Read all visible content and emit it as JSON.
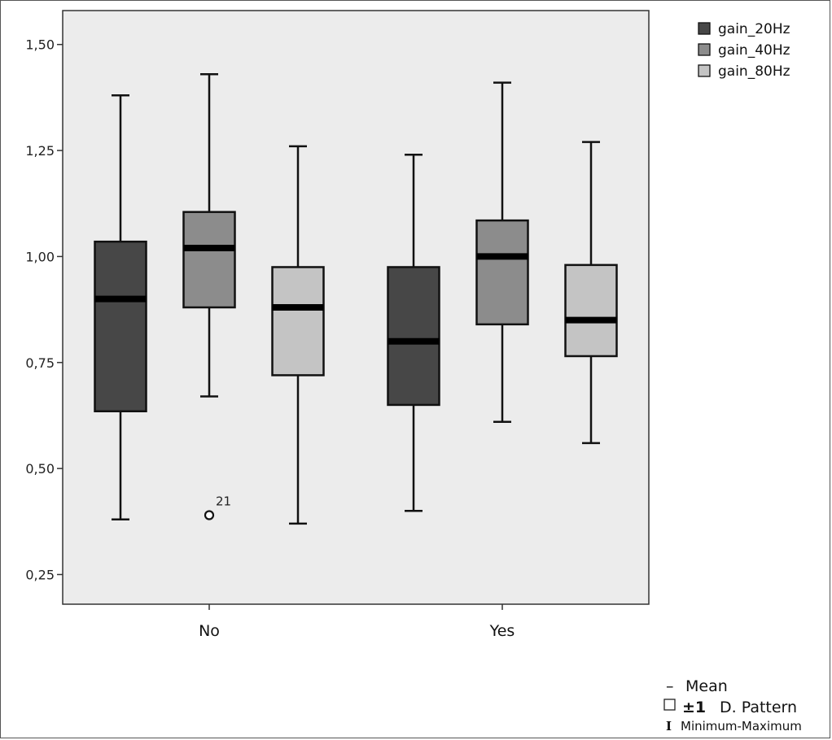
{
  "chart_data": {
    "type": "boxplot",
    "categories": [
      "No",
      "Yes"
    ],
    "series": [
      {
        "name": "gain_20Hz",
        "color": "#474747",
        "boxes": [
          {
            "min": 0.38,
            "q1": 0.635,
            "median": 0.9,
            "q3": 1.035,
            "max": 1.38
          },
          {
            "min": 0.4,
            "q1": 0.65,
            "median": 0.8,
            "q3": 0.975,
            "max": 1.24
          }
        ]
      },
      {
        "name": "gain_40Hz",
        "color": "#8c8c8c",
        "boxes": [
          {
            "min": 0.67,
            "q1": 0.88,
            "median": 1.02,
            "q3": 1.105,
            "max": 1.43,
            "outliers": [
              {
                "value": 0.39,
                "label": "21"
              }
            ]
          },
          {
            "min": 0.61,
            "q1": 0.84,
            "median": 1.0,
            "q3": 1.085,
            "max": 1.41
          }
        ]
      },
      {
        "name": "gain_80Hz",
        "color": "#c4c4c4",
        "boxes": [
          {
            "min": 0.37,
            "q1": 0.72,
            "median": 0.88,
            "q3": 0.975,
            "max": 1.26
          },
          {
            "min": 0.56,
            "q1": 0.765,
            "median": 0.85,
            "q3": 0.98,
            "max": 1.27
          }
        ]
      }
    ],
    "ylim": [
      0.18,
      1.58
    ],
    "yticks": [
      0.25,
      0.5,
      0.75,
      1.0,
      1.25,
      1.5
    ],
    "ytick_labels": [
      "0,25",
      "0,50",
      "0,75",
      "1,00",
      "1,25",
      "1,50"
    ],
    "xlabel": "",
    "ylabel": "",
    "grid": false,
    "legend_position": "top-right",
    "plot_background": "#ececec"
  },
  "notes": {
    "mean_symbol": "–",
    "mean_label": "Mean",
    "sd_symbol": "±1",
    "sd_label": "D. Pattern",
    "range_symbol": "I",
    "range_label": "Minimum-Maximum"
  }
}
